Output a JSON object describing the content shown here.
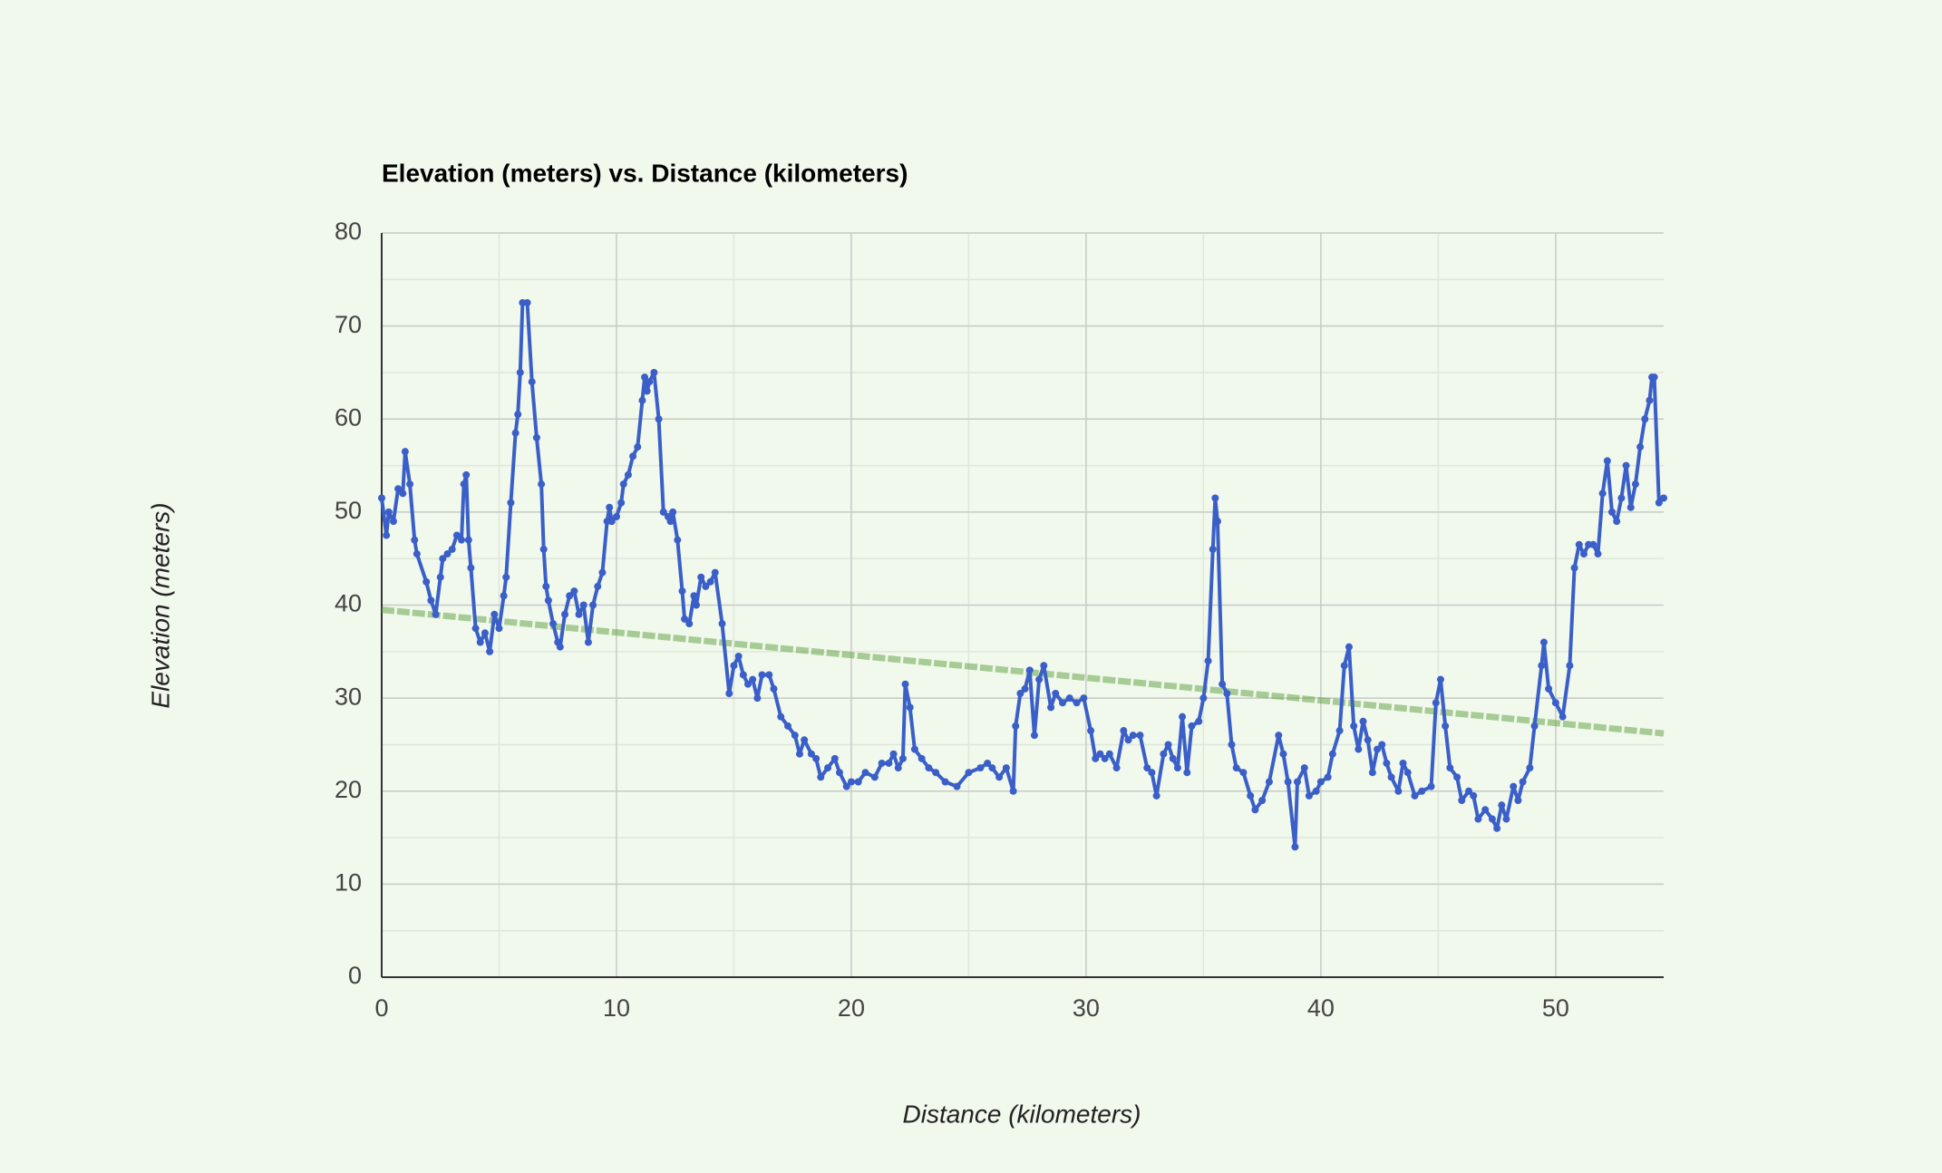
{
  "chart_data": {
    "type": "line",
    "title": "Elevation (meters) vs. Distance (kilometers)",
    "x_label": "Distance (kilometers)",
    "y_label": "Elevation (meters)",
    "xlim": [
      0,
      54.6
    ],
    "xticks": [
      0,
      10,
      20,
      30,
      40,
      50
    ],
    "ylim": [
      0,
      80
    ],
    "yticks": [
      0,
      10,
      20,
      30,
      40,
      50,
      60,
      70,
      80
    ],
    "grid": true,
    "minor_grid": true,
    "series": [
      {
        "color": "#3a5fc8",
        "x": [
          0,
          0.2,
          0.3,
          0.5,
          0.7,
          0.9,
          1.0,
          1.2,
          1.4,
          1.5,
          1.9,
          2.1,
          2.3,
          2.5,
          2.6,
          2.8,
          3.0,
          3.2,
          3.4,
          3.5,
          3.6,
          3.7,
          3.8,
          4.0,
          4.2,
          4.4,
          4.6,
          4.8,
          5.0,
          5.2,
          5.3,
          5.5,
          5.7,
          5.8,
          5.9,
          6.0,
          6.2,
          6.4,
          6.6,
          6.8,
          6.9,
          7.0,
          7.1,
          7.3,
          7.5,
          7.6,
          7.8,
          8.0,
          8.2,
          8.4,
          8.6,
          8.8,
          9.0,
          9.2,
          9.4,
          9.6,
          9.7,
          9.8,
          10.0,
          10.2,
          10.3,
          10.5,
          10.7,
          10.9,
          11.1,
          11.2,
          11.3,
          11.4,
          11.6,
          11.8,
          12.0,
          12.2,
          12.3,
          12.4,
          12.6,
          12.8,
          12.9,
          13.1,
          13.3,
          13.4,
          13.6,
          13.8,
          14.0,
          14.2,
          14.5,
          14.8,
          15.0,
          15.2,
          15.4,
          15.6,
          15.8,
          16.0,
          16.2,
          16.5,
          16.7,
          17.0,
          17.3,
          17.6,
          17.8,
          18.0,
          18.3,
          18.5,
          18.7,
          19.0,
          19.3,
          19.5,
          19.8,
          20.0,
          20.3,
          20.6,
          21.0,
          21.3,
          21.6,
          21.8,
          22.0,
          22.2,
          22.3,
          22.5,
          22.7,
          23.0,
          23.3,
          23.6,
          24.0,
          24.5,
          25.0,
          25.5,
          25.8,
          26.0,
          26.3,
          26.6,
          26.9,
          27.0,
          27.2,
          27.4,
          27.6,
          27.8,
          28.0,
          28.2,
          28.5,
          28.7,
          29.0,
          29.3,
          29.6,
          29.9,
          30.2,
          30.4,
          30.6,
          30.8,
          31.0,
          31.3,
          31.6,
          31.8,
          32.0,
          32.3,
          32.6,
          32.8,
          33.0,
          33.3,
          33.5,
          33.7,
          33.9,
          34.1,
          34.3,
          34.5,
          34.8,
          35.0,
          35.2,
          35.4,
          35.5,
          35.6,
          35.8,
          36.0,
          36.2,
          36.4,
          36.7,
          37.0,
          37.2,
          37.5,
          37.8,
          38.2,
          38.4,
          38.6,
          38.9,
          39.0,
          39.3,
          39.5,
          39.8,
          40.0,
          40.3,
          40.5,
          40.8,
          41.0,
          41.2,
          41.4,
          41.6,
          41.8,
          42.0,
          42.2,
          42.4,
          42.6,
          42.8,
          43.0,
          43.3,
          43.5,
          43.7,
          44.0,
          44.3,
          44.7,
          44.9,
          45.1,
          45.3,
          45.5,
          45.8,
          46.0,
          46.3,
          46.5,
          46.7,
          47.0,
          47.3,
          47.5,
          47.7,
          47.9,
          48.2,
          48.4,
          48.6,
          48.9,
          49.1,
          49.4,
          49.5,
          49.7,
          50.0,
          50.3,
          50.6,
          50.8,
          51.0,
          51.2,
          51.4,
          51.6,
          51.8,
          52.0,
          52.2,
          52.4,
          52.6,
          52.8,
          53.0,
          53.2,
          53.4,
          53.6,
          53.8,
          54.0,
          54.1,
          54.2,
          54.4,
          54.6
        ],
        "values": [
          51.5,
          47.5,
          50,
          49,
          52.5,
          52,
          56.5,
          53,
          47,
          45.5,
          42.5,
          40.5,
          39,
          43,
          45,
          45.5,
          46,
          47.5,
          47,
          53,
          54,
          47,
          44,
          37.5,
          36,
          37,
          35,
          39,
          37.5,
          41,
          43,
          51,
          58.5,
          60.5,
          65,
          72.5,
          72.5,
          64,
          58,
          53,
          46,
          42,
          40.5,
          38,
          36,
          35.5,
          39,
          41,
          41.5,
          39,
          40,
          36,
          40,
          42,
          43.5,
          49,
          50.5,
          49,
          49.5,
          51,
          53,
          54,
          56,
          57,
          62,
          64.5,
          63,
          64,
          65,
          60,
          50,
          49.5,
          49,
          50,
          47,
          41.5,
          38.5,
          38,
          41,
          40,
          43,
          42,
          42.5,
          43.5,
          38,
          30.5,
          33.5,
          34.5,
          32.5,
          31.5,
          32,
          30,
          32.5,
          32.5,
          31,
          28,
          27,
          26,
          24,
          25.5,
          24,
          23.5,
          21.5,
          22.5,
          23.5,
          22,
          20.5,
          21,
          21,
          22,
          21.5,
          23,
          23,
          24,
          22.5,
          23.5,
          31.5,
          29,
          24.5,
          23.5,
          22.5,
          22,
          21,
          20.5,
          22,
          22.5,
          23,
          22.5,
          21.5,
          22.5,
          20,
          27,
          30.5,
          31,
          33,
          26,
          32,
          33.5,
          29,
          30.5,
          29.5,
          30,
          29.5,
          30,
          26.5,
          23.5,
          24,
          23.5,
          24,
          22.5,
          26.5,
          25.5,
          26,
          26,
          22.5,
          22,
          19.5,
          24,
          25,
          23.5,
          22.5,
          28,
          22,
          27,
          27.5,
          30,
          34,
          46,
          51.5,
          49,
          31.5,
          30.5,
          25,
          22.5,
          22,
          19.5,
          18,
          19,
          21,
          26,
          24,
          21,
          14,
          21,
          22.5,
          19.5,
          20,
          21,
          21.5,
          24,
          26.5,
          33.5,
          35.5,
          27,
          24.5,
          27.5,
          25.5,
          22,
          24.5,
          25,
          23,
          21.5,
          20,
          23,
          22,
          19.5,
          20,
          20.5,
          29.5,
          32,
          27,
          22.5,
          21.5,
          19,
          20,
          19.5,
          17,
          18,
          17,
          16,
          18.5,
          17,
          20.5,
          19,
          21,
          22.5,
          27,
          33.5,
          36,
          31,
          29.5,
          28,
          33.5,
          44,
          46.5,
          45.5,
          46.5,
          46.5,
          45.5,
          52,
          55.5,
          50,
          49,
          51.5,
          55,
          50.5,
          53,
          57,
          60,
          62,
          64.5,
          64.5,
          51,
          51.5
        ]
      }
    ],
    "trendline": {
      "color": "#5c9e3c",
      "x": [
        0,
        54.6
      ],
      "values": [
        39.5,
        26.2
      ]
    }
  }
}
